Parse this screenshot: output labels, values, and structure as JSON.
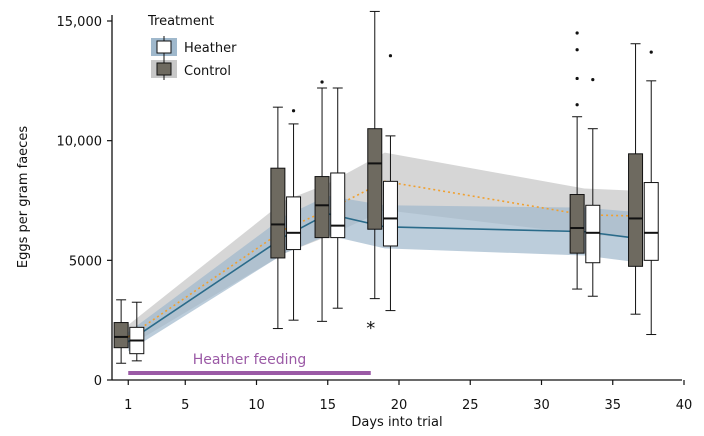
{
  "chart_data": {
    "type": "box",
    "xlabel": "Days into trial",
    "ylabel": "Eggs per gram faeces",
    "xlim": [
      0,
      40
    ],
    "ylim": [
      0,
      15000
    ],
    "x_ticks": [
      1,
      5,
      10,
      15,
      20,
      25,
      30,
      35,
      40
    ],
    "y_ticks": [
      {
        "value": 0,
        "label": "0"
      },
      {
        "value": 5000,
        "label": "5000"
      },
      {
        "value": 10000,
        "label": "10,000"
      },
      {
        "value": 15000,
        "label": "15,000"
      }
    ],
    "legend": {
      "title": "Treatment",
      "placement": "top-left",
      "entries": [
        "Heather",
        "Control"
      ]
    },
    "colors": {
      "control_box": "#6e6a60",
      "heather_box": "#ffffff",
      "heather_line": "#2a6b8a",
      "heather_band": "#9fb8cc",
      "control_line": "#f0a030",
      "control_band": "#c8c8c8",
      "feeding_bar": "#9b5aa6",
      "legend_heather_bg": "#9fb8cc",
      "legend_control_bg": "#c8c8c8"
    },
    "series": [
      {
        "name": "Control",
        "boxes": [
          {
            "x": 0.5,
            "min": 700,
            "q1": 1350,
            "median": 1800,
            "q3": 2400,
            "max": 3350,
            "outliers": []
          },
          {
            "x": 11.5,
            "min": 2150,
            "q1": 5100,
            "median": 6500,
            "q3": 8850,
            "max": 11400,
            "outliers": []
          },
          {
            "x": 14.6,
            "min": 2450,
            "q1": 5950,
            "median": 7300,
            "q3": 8500,
            "max": 12200,
            "outliers": [
              12450
            ]
          },
          {
            "x": 18.3,
            "min": 3400,
            "q1": 6300,
            "median": 9050,
            "q3": 10500,
            "max": 15400,
            "outliers": []
          },
          {
            "x": 32.5,
            "min": 3800,
            "q1": 5300,
            "median": 6350,
            "q3": 7750,
            "max": 11000,
            "outliers": [
              11500,
              12600,
              13800,
              14500
            ]
          },
          {
            "x": 36.6,
            "min": 2750,
            "q1": 4750,
            "median": 6750,
            "q3": 9450,
            "max": 14050,
            "outliers": []
          }
        ],
        "trend": {
          "x": [
            1,
            12,
            15,
            19,
            33,
            37
          ],
          "y": [
            1800,
            6300,
            7100,
            8300,
            6900,
            6850
          ]
        }
      },
      {
        "name": "Heather",
        "boxes": [
          {
            "x": 1.6,
            "min": 800,
            "q1": 1100,
            "median": 1650,
            "q3": 2200,
            "max": 3250,
            "outliers": []
          },
          {
            "x": 12.6,
            "min": 2500,
            "q1": 5450,
            "median": 6150,
            "q3": 7650,
            "max": 10700,
            "outliers": [
              11250
            ]
          },
          {
            "x": 15.7,
            "min": 3000,
            "q1": 5950,
            "median": 6450,
            "q3": 8650,
            "max": 12200,
            "outliers": []
          },
          {
            "x": 19.4,
            "min": 2900,
            "q1": 5600,
            "median": 6750,
            "q3": 8300,
            "max": 10200,
            "outliers": [
              13550
            ]
          },
          {
            "x": 33.6,
            "min": 3500,
            "q1": 4900,
            "median": 6150,
            "q3": 7300,
            "max": 10500,
            "outliers": [
              12550
            ]
          },
          {
            "x": 37.7,
            "min": 1900,
            "q1": 5000,
            "median": 6150,
            "q3": 8250,
            "max": 12500,
            "outliers": [
              13700
            ]
          }
        ],
        "trend": {
          "x": [
            1,
            12,
            15,
            19,
            33,
            37
          ],
          "y": [
            1600,
            6000,
            6950,
            6400,
            6200,
            5900
          ]
        }
      }
    ],
    "bands": [
      {
        "series": "Control",
        "x": [
          1,
          12,
          15,
          19,
          33,
          37
        ],
        "lower": [
          1400,
          5300,
          6000,
          7100,
          6100,
          5900
        ],
        "upper": [
          2300,
          7500,
          8200,
          9500,
          8000,
          7900
        ]
      },
      {
        "series": "Heather",
        "x": [
          1,
          12,
          15,
          19,
          33,
          37
        ],
        "lower": [
          1200,
          5300,
          6050,
          5500,
          5200,
          4900
        ],
        "upper": [
          2000,
          6850,
          7700,
          7300,
          7200,
          7000
        ]
      }
    ],
    "annotations": [
      {
        "label": "Heather feeding",
        "type": "range",
        "x_start": 1,
        "x_end": 19
      },
      {
        "label": "*",
        "type": "significance",
        "x": 19
      }
    ]
  }
}
